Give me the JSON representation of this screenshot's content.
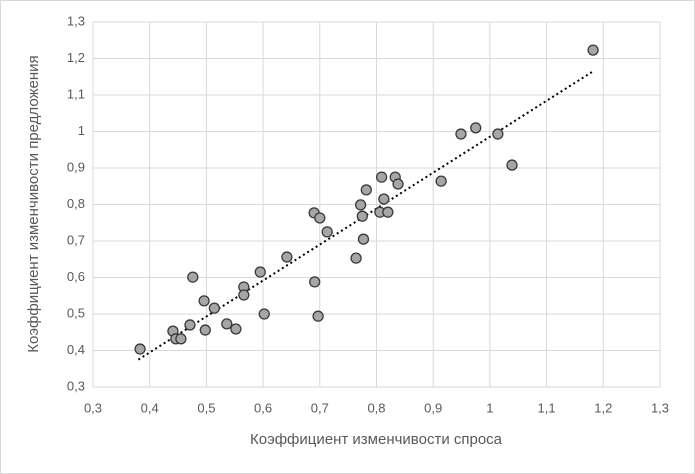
{
  "chart_data": {
    "type": "scatter",
    "xlabel": "Коэффициент изменчивости спроса",
    "ylabel": "Коэффициент изменчивости предложения",
    "x": [
      0.383,
      0.441,
      0.446,
      0.455,
      0.471,
      0.476,
      0.496,
      0.498,
      0.514,
      0.536,
      0.552,
      0.566,
      0.566,
      0.595,
      0.602,
      0.642,
      0.69,
      0.7,
      0.691,
      0.697,
      0.713,
      0.764,
      0.772,
      0.775,
      0.777,
      0.782,
      0.809,
      0.806,
      0.813,
      0.82,
      0.833,
      0.838,
      0.914,
      0.949,
      0.975,
      1.014,
      1.039,
      1.182
    ],
    "y": [
      0.404,
      0.453,
      0.432,
      0.432,
      0.47,
      0.601,
      0.536,
      0.456,
      0.516,
      0.473,
      0.459,
      0.574,
      0.552,
      0.615,
      0.5,
      0.656,
      0.777,
      0.763,
      0.588,
      0.494,
      0.725,
      0.653,
      0.799,
      0.768,
      0.705,
      0.84,
      0.875,
      0.779,
      0.815,
      0.779,
      0.875,
      0.856,
      0.864,
      0.993,
      1.01,
      0.993,
      0.908,
      1.223
    ],
    "color": "#a6a6a6",
    "edge_color": "#3a3a3a",
    "trendline": {
      "x": [
        0.38,
        1.18
      ],
      "y": [
        0.375,
        1.163
      ],
      "color": "#000000"
    },
    "xlim": [
      0.3,
      1.3
    ],
    "ylim": [
      0.3,
      1.3
    ],
    "xticks": [
      {
        "value": 0.3,
        "label": "0,3"
      },
      {
        "value": 0.4,
        "label": "0,4"
      },
      {
        "value": 0.5,
        "label": "0,5"
      },
      {
        "value": 0.6,
        "label": "0,6"
      },
      {
        "value": 0.7,
        "label": "0,7"
      },
      {
        "value": 0.8,
        "label": "0,8"
      },
      {
        "value": 0.9,
        "label": "0,9"
      },
      1,
      {
        "value": 1.1,
        "label": "1,1"
      },
      {
        "value": 1.2,
        "label": "1,2"
      },
      {
        "value": 1.3,
        "label": "1,3"
      }
    ],
    "yticks": [
      {
        "value": 0.3,
        "label": "0,3"
      },
      {
        "value": 0.4,
        "label": "0,4"
      },
      {
        "value": 0.5,
        "label": "0,5"
      },
      {
        "value": 0.6,
        "label": "0,6"
      },
      {
        "value": 0.7,
        "label": "0,7"
      },
      {
        "value": 0.8,
        "label": "0,8"
      },
      {
        "value": 0.9,
        "label": "0,9"
      },
      1,
      {
        "value": 1.1,
        "label": "1,1"
      },
      {
        "value": 1.2,
        "label": "1,2"
      },
      {
        "value": 1.3,
        "label": "1,3"
      }
    ],
    "grid": true
  }
}
